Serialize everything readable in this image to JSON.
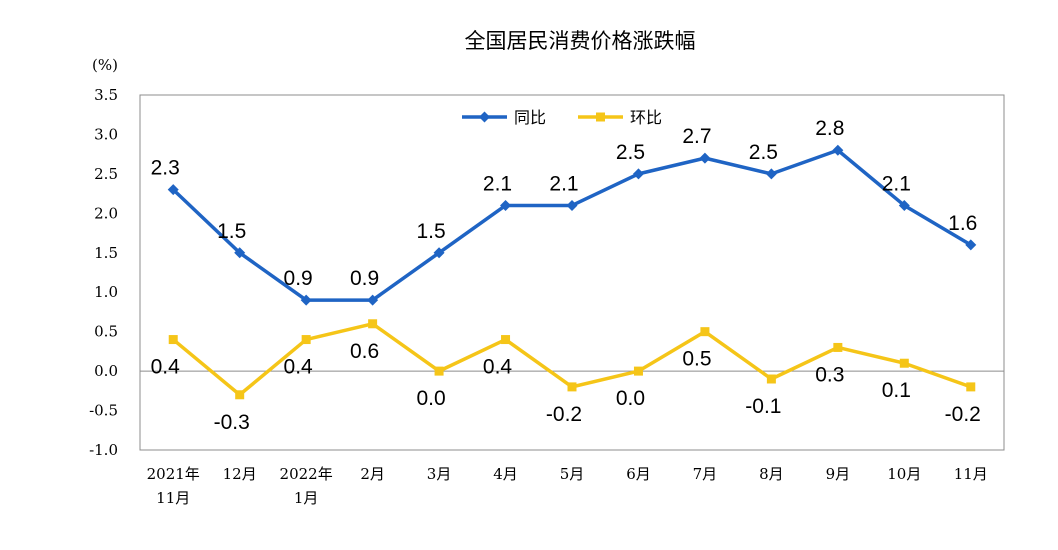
{
  "chart_data": {
    "type": "line",
    "title": "全国居民消费价格涨跌幅",
    "unit_label": "(%)",
    "ylim": [
      -1.0,
      3.5
    ],
    "yticks": [
      "3.5",
      "3.0",
      "2.5",
      "2.0",
      "1.5",
      "1.0",
      "0.5",
      "0.0",
      "-0.5",
      "-1.0"
    ],
    "ytick_values": [
      3.5,
      3.0,
      2.5,
      2.0,
      1.5,
      1.0,
      0.5,
      0.0,
      -0.5,
      -1.0
    ],
    "categories": [
      [
        "2021年",
        "11月"
      ],
      [
        "12月"
      ],
      [
        "2022年",
        "1月"
      ],
      [
        "2月"
      ],
      [
        "3月"
      ],
      [
        "4月"
      ],
      [
        "5月"
      ],
      [
        "6月"
      ],
      [
        "7月"
      ],
      [
        "8月"
      ],
      [
        "9月"
      ],
      [
        "10月"
      ],
      [
        "11月"
      ]
    ],
    "legend_position": "top-center",
    "series": [
      {
        "name": "同比",
        "color": "#1f64c4",
        "marker": "diamond",
        "values": [
          2.3,
          1.5,
          0.9,
          0.9,
          1.5,
          2.1,
          2.1,
          2.5,
          2.7,
          2.5,
          2.8,
          2.1,
          1.6
        ],
        "labels": [
          "2.3",
          "1.5",
          "0.9",
          "0.9",
          "1.5",
          "2.1",
          "2.1",
          "2.5",
          "2.7",
          "2.5",
          "2.8",
          "2.1",
          "1.6"
        ]
      },
      {
        "name": "环比",
        "color": "#f5c518",
        "marker": "square",
        "values": [
          0.4,
          -0.3,
          0.4,
          0.6,
          0.0,
          0.4,
          -0.2,
          0.0,
          0.5,
          -0.1,
          0.3,
          0.1,
          -0.2
        ],
        "labels": [
          "0.4",
          "-0.3",
          "0.4",
          "0.6",
          "0.0",
          "0.4",
          "-0.2",
          "0.0",
          "0.5",
          "-0.1",
          "0.3",
          "0.1",
          "-0.2"
        ]
      }
    ]
  }
}
